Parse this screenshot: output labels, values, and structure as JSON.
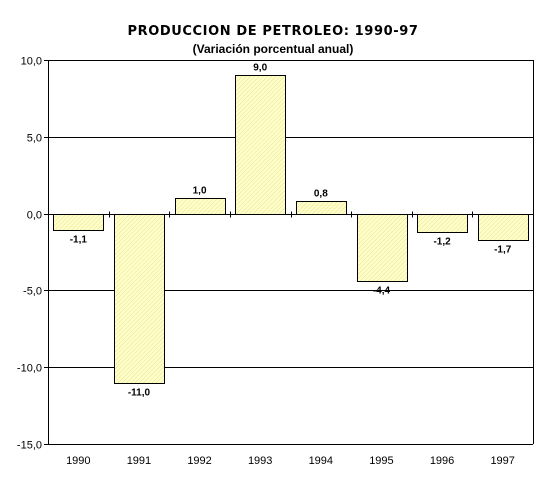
{
  "chart_data": {
    "type": "bar",
    "title": "PRODUCCION DE PETROLEO: 1990-97",
    "subtitle": "(Variación porcentual anual)",
    "categories": [
      "1990",
      "1991",
      "1992",
      "1993",
      "1994",
      "1995",
      "1996",
      "1997"
    ],
    "values": [
      -1.1,
      -11.0,
      1.0,
      9.0,
      0.8,
      -4.4,
      -1.2,
      -1.7
    ],
    "value_labels": [
      "-1,1",
      "-11,0",
      "1,0",
      "9,0",
      "0,8",
      "-4,4",
      "-1,2",
      "-1,7"
    ],
    "ylim": [
      -15,
      10
    ],
    "y_ticks": [
      10,
      5,
      0,
      -5,
      -10,
      -15
    ],
    "y_tick_labels": [
      "10,0",
      "5,0",
      "0,0",
      "-5,0",
      "-10,0",
      "-15,0"
    ],
    "grid": true,
    "colors": {
      "bar_fill": "#ffffcc",
      "bar_hatch": "#e8e28a",
      "bar_stroke": "#000000"
    }
  }
}
